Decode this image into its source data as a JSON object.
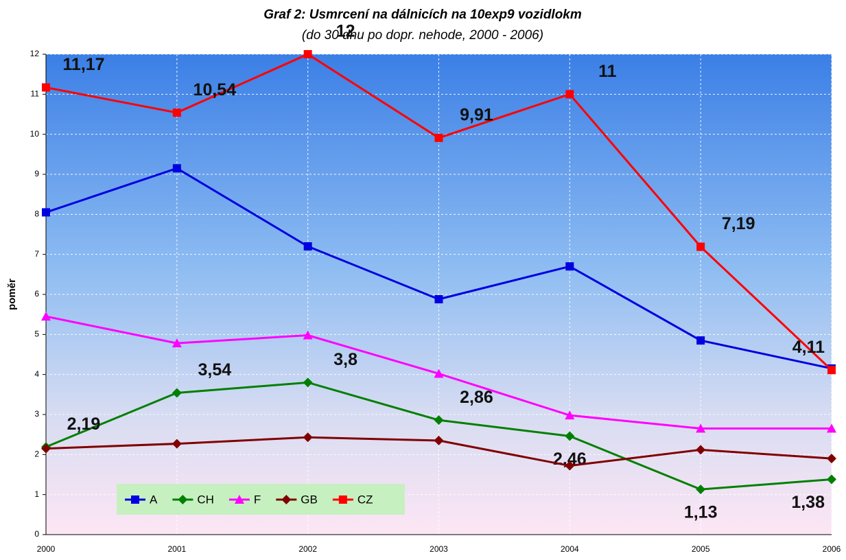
{
  "chart_data": {
    "type": "line",
    "title": "Graf 2: Usmrcení na dálnicích na 10exp9 vozidlokm",
    "subtitle": "(do 30 dnu po dopr. nehode, 2000 - 2006)",
    "y_label": "poměr",
    "categories": [
      "2000",
      "2001",
      "2002",
      "2003",
      "2004",
      "2005",
      "2006"
    ],
    "series": [
      {
        "name": "A",
        "color": "#0000e0",
        "marker": "square",
        "values": [
          8.05,
          9.15,
          7.2,
          5.88,
          6.7,
          4.85,
          4.15
        ]
      },
      {
        "name": "CH",
        "color": "#008000",
        "marker": "diamond",
        "values": [
          2.19,
          3.54,
          3.8,
          2.86,
          2.46,
          1.13,
          1.38
        ],
        "value_labels": [
          "2,19",
          "3,54",
          "3,8",
          "2,86",
          "2,46",
          "1,13",
          "1,38"
        ]
      },
      {
        "name": "F",
        "color": "#ff00ff",
        "marker": "triangle",
        "values": [
          5.45,
          4.78,
          4.98,
          4.02,
          2.98,
          2.65,
          2.65
        ]
      },
      {
        "name": "GB",
        "color": "#800000",
        "marker": "diamond",
        "values": [
          2.15,
          2.27,
          2.43,
          2.35,
          1.72,
          2.12,
          1.9
        ]
      },
      {
        "name": "CZ",
        "color": "#ff0000",
        "marker": "square",
        "values": [
          11.17,
          10.54,
          12,
          9.91,
          11,
          7.19,
          4.11
        ],
        "value_labels": [
          "11,17",
          "10,54",
          "12",
          "9,91",
          "11",
          "7,19",
          "4,11"
        ]
      }
    ],
    "ylim": [
      0,
      12
    ],
    "yticks": [
      0,
      1,
      2,
      3,
      4,
      5,
      6,
      7,
      8,
      9,
      10,
      11,
      12
    ],
    "grid": true,
    "legend": "bottom-left"
  }
}
